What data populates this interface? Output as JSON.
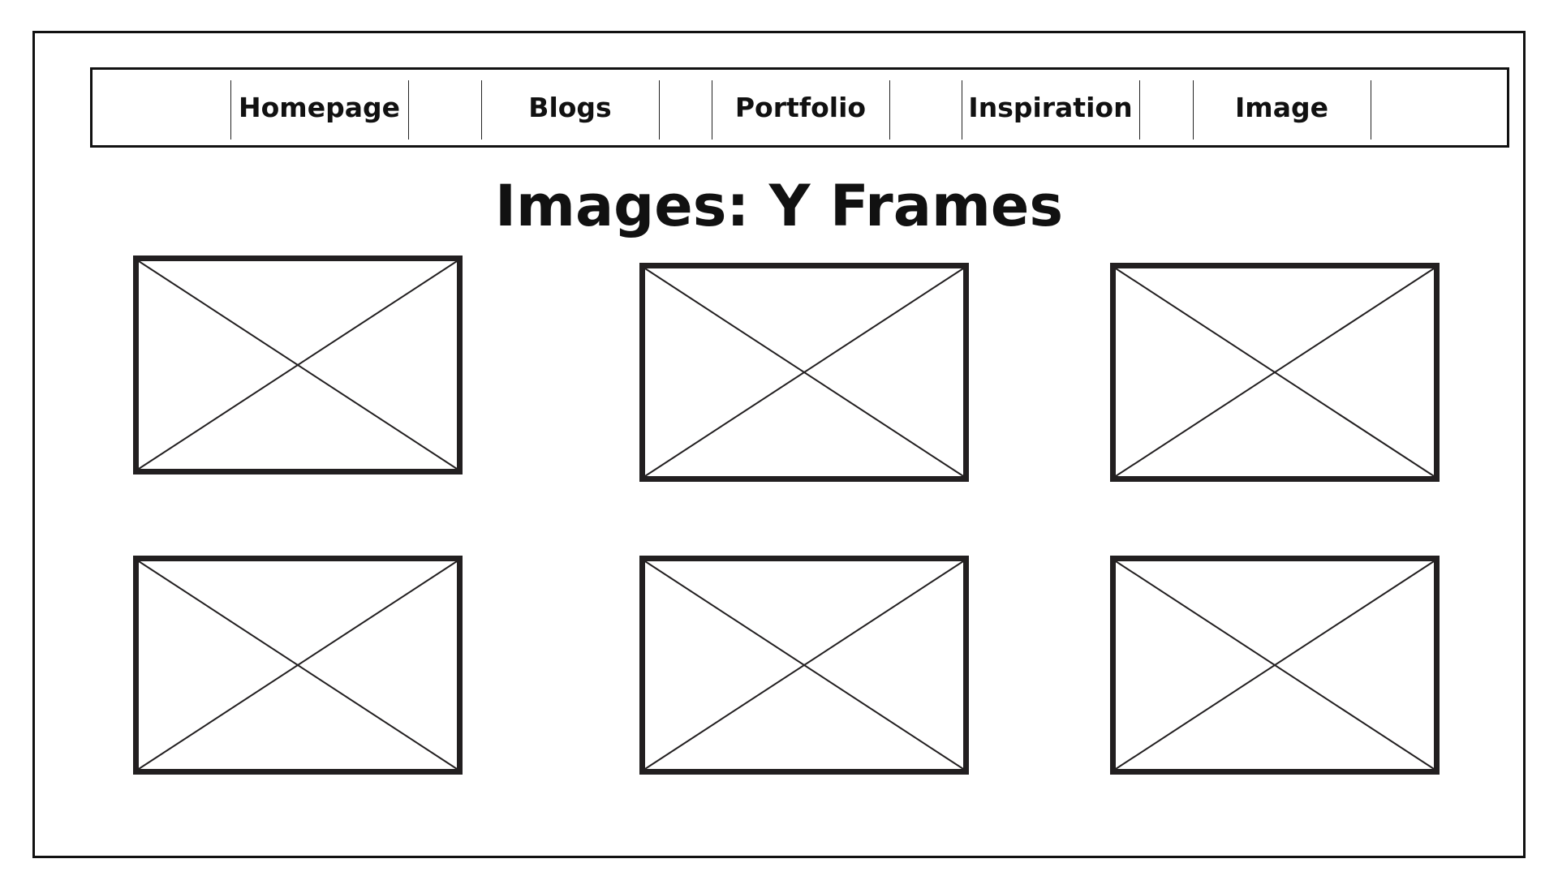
{
  "nav": {
    "items": [
      {
        "label": "Homepage"
      },
      {
        "label": "Blogs"
      },
      {
        "label": "Portfolio"
      },
      {
        "label": "Inspiration"
      },
      {
        "label": "Image"
      }
    ]
  },
  "page": {
    "title": "Images: Y Frames"
  },
  "gallery": {
    "images": [
      {
        "icon": "image-placeholder-icon"
      },
      {
        "icon": "image-placeholder-icon"
      },
      {
        "icon": "image-placeholder-icon"
      },
      {
        "icon": "image-placeholder-icon"
      },
      {
        "icon": "image-placeholder-icon"
      },
      {
        "icon": "image-placeholder-icon"
      }
    ]
  },
  "colors": {
    "stroke": "#221f20",
    "background": "#ffffff"
  }
}
